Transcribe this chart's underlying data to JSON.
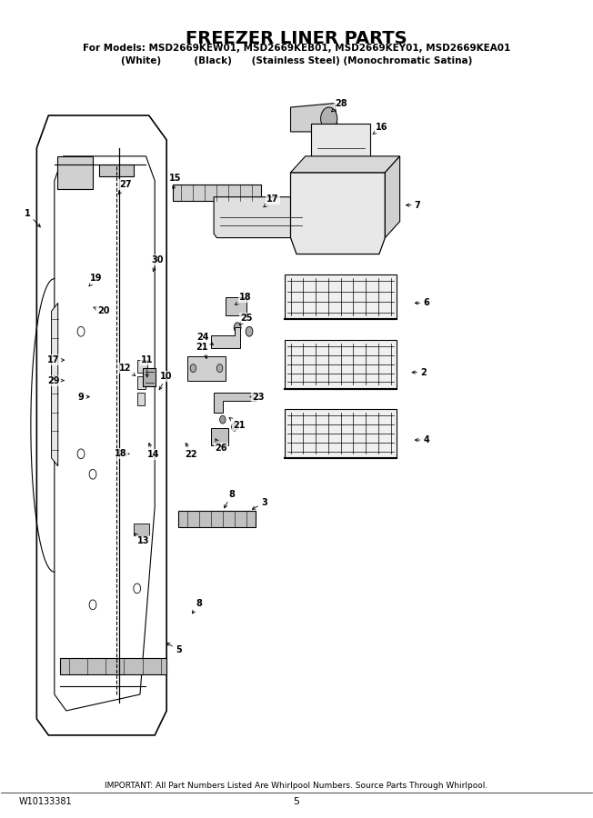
{
  "title": "FREEZER LINER PARTS",
  "subtitle1": "For Models: MSD2669KEW01, MSD2669KEB01, MSD2669KEY01, MSD2669KEA01",
  "subtitle2": "(White)          (Black)      (Stainless Steel) (Monochromatic Satina)",
  "footer1": "IMPORTANT: All Part Numbers Listed Are Whirlpool Numbers. Source Parts Through Whirlpool.",
  "footer_left": "W10133381",
  "footer_center": "5",
  "bg_color": "#ffffff",
  "line_color": "#000000"
}
